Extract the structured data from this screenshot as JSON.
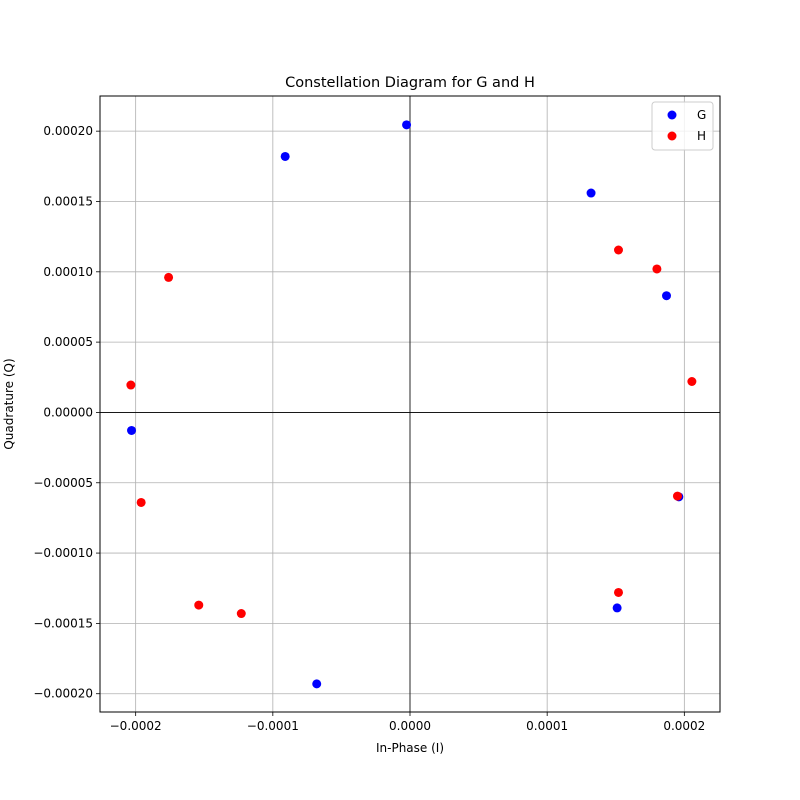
{
  "chart_data": {
    "type": "scatter",
    "title": "Constellation Diagram for G and H",
    "xlabel": "In-Phase (I)",
    "ylabel": "Quadrature (Q)",
    "xlim": [
      -0.000226,
      0.000226
    ],
    "ylim": [
      -0.000213,
      0.000225
    ],
    "xticks": [
      -0.0002,
      -0.0001,
      0.0,
      0.0001,
      0.0002
    ],
    "xtick_labels": [
      "−0.0002",
      "−0.0001",
      "0.0000",
      "0.0001",
      "0.0002"
    ],
    "yticks": [
      -0.0002,
      -0.00015,
      -0.0001,
      -5e-05,
      0.0,
      5e-05,
      0.0001,
      0.00015,
      0.0002
    ],
    "ytick_labels": [
      "−0.00020",
      "−0.00015",
      "−0.00010",
      "−0.00005",
      "0.00000",
      "0.00005",
      "0.00010",
      "0.00015",
      "0.00020"
    ],
    "grid": true,
    "zero_lines": true,
    "legend_position": "top-right",
    "series": [
      {
        "name": "G",
        "color": "#0000ff",
        "points": [
          [
            -2.5e-06,
            0.0002045
          ],
          [
            -9.1e-05,
            0.000182
          ],
          [
            0.000132,
            0.000156
          ],
          [
            0.000187,
            8.3e-05
          ],
          [
            -0.000203,
            -1.28e-05
          ],
          [
            0.000196,
            -6e-05
          ],
          [
            0.000151,
            -0.000139
          ],
          [
            -6.8e-05,
            -0.000193
          ]
        ]
      },
      {
        "name": "H",
        "color": "#ff0000",
        "points": [
          [
            0.000152,
            0.0001155
          ],
          [
            0.00018,
            0.000102
          ],
          [
            -0.000176,
            9.6e-05
          ],
          [
            -0.0002035,
            1.95e-05
          ],
          [
            0.0002055,
            2.2e-05
          ],
          [
            -0.000196,
            -6.4e-05
          ],
          [
            0.000195,
            -5.95e-05
          ],
          [
            0.000152,
            -0.000128
          ],
          [
            -0.000154,
            -0.000137
          ],
          [
            -0.000123,
            -0.000143
          ]
        ]
      }
    ]
  }
}
